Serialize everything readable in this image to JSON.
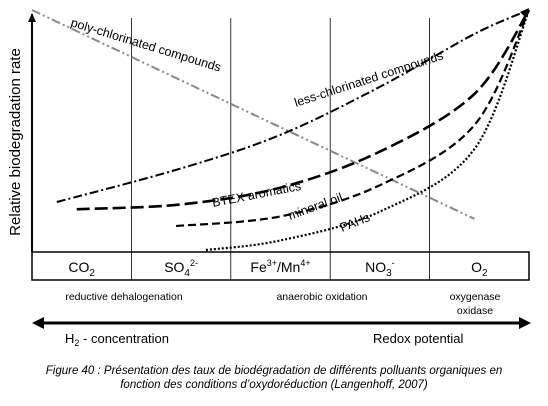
{
  "chart_data": {
    "type": "line",
    "ylabel": "Relative biodegradation rate",
    "x_categories": [
      {
        "label": "CO",
        "sub": "2",
        "sup": ""
      },
      {
        "label": "SO",
        "sub": "4",
        "sup": "2-"
      },
      {
        "label": "Fe",
        "sub": "",
        "sup": "3+",
        "label2": "/Mn",
        "sup2": "4+"
      },
      {
        "label": "NO",
        "sub": "3",
        "sup": "-"
      },
      {
        "label": "O",
        "sub": "2",
        "sup": ""
      }
    ],
    "process_labels": {
      "reductive": "reductive dehalogenation",
      "anaerobic": "anaerobic oxidation",
      "oxygenase_1": "oxygenase",
      "oxygenase_2": "oxidase"
    },
    "axis_bottom": {
      "h2_prefix": "H",
      "h2_sub": "2",
      "h2_suffix": " - concentration",
      "redox": "Redox potential"
    },
    "curve_labels": {
      "poly": "poly-chlorinated compounds",
      "less": "less-chlorinated compounds",
      "btex": "BTEX aromatics",
      "mineral": "mineral oil",
      "pahs": "PAHs"
    },
    "series": [
      {
        "name": "poly-chlorinated compounds",
        "style": "dash-dot-dot",
        "color": "#888888",
        "points": [
          [
            0.0,
            1.0
          ],
          [
            4.45,
            0.13
          ]
        ]
      },
      {
        "name": "less-chlorinated compounds",
        "style": "dash-dot",
        "color": "#000000",
        "points": [
          [
            0.25,
            0.2
          ],
          [
            1.5,
            0.34
          ],
          [
            2.5,
            0.48
          ],
          [
            3.5,
            0.68
          ],
          [
            4.45,
            0.9
          ],
          [
            5.0,
            1.0
          ]
        ]
      },
      {
        "name": "BTEX aromatics",
        "style": "long-dash",
        "color": "#000000",
        "points": [
          [
            0.45,
            0.17
          ],
          [
            1.5,
            0.19
          ],
          [
            2.5,
            0.26
          ],
          [
            3.5,
            0.41
          ],
          [
            4.45,
            0.65
          ],
          [
            5.0,
            1.0
          ]
        ]
      },
      {
        "name": "mineral oil",
        "style": "dash",
        "color": "#000000",
        "points": [
          [
            1.45,
            0.1
          ],
          [
            2.5,
            0.14
          ],
          [
            3.5,
            0.27
          ],
          [
            4.45,
            0.52
          ],
          [
            5.0,
            1.0
          ]
        ]
      },
      {
        "name": "PAHs",
        "style": "dotted",
        "color": "#000000",
        "points": [
          [
            1.75,
            0.0
          ],
          [
            2.5,
            0.04
          ],
          [
            3.5,
            0.16
          ],
          [
            4.45,
            0.42
          ],
          [
            5.0,
            1.0
          ]
        ]
      }
    ],
    "xlim": [
      0,
      5
    ],
    "ylim": [
      0,
      1
    ]
  },
  "caption": {
    "line1": "Figure 40 : Présentation des taux de biodégradation  de différents polluants organiques en",
    "line2": "fonction des conditions d’oxydoréduction (Langenhoff, 2007)"
  }
}
